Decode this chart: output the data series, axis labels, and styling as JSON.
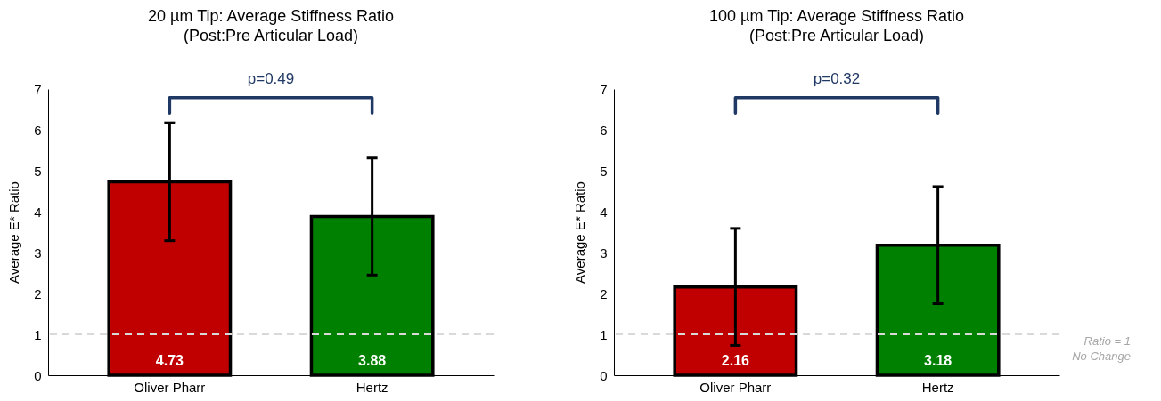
{
  "chart_data": [
    {
      "type": "bar",
      "title": "20 µm Tip: Average Stiffness Ratio",
      "subtitle": "(Post:Pre Articular Load)",
      "ylabel": "Average E* Ratio",
      "categories": [
        "Oliver Pharr",
        "Hertz"
      ],
      "values": [
        4.73,
        3.88
      ],
      "colors": [
        "#c00000",
        "#008000"
      ],
      "errors": [
        1.44,
        1.43
      ],
      "data_labels": true,
      "ylim": [
        0,
        7
      ],
      "yticks": [
        0,
        1,
        2,
        3,
        4,
        5,
        6,
        7
      ],
      "grid": false,
      "annotations": [
        "p=0.49"
      ],
      "ref_lines": [
        {
          "axis": "y",
          "value": 1,
          "color": "#d9d9d9",
          "line_style": "dashed"
        }
      ]
    },
    {
      "type": "bar",
      "title": "100 µm Tip: Average Stiffness Ratio",
      "subtitle": "(Post:Pre Articular Load)",
      "ylabel": "Average E* Ratio",
      "categories": [
        "Oliver Pharr",
        "Hertz"
      ],
      "values": [
        2.16,
        3.18
      ],
      "colors": [
        "#c00000",
        "#008000"
      ],
      "errors": [
        1.43,
        1.43
      ],
      "data_labels": true,
      "ylim": [
        0,
        7
      ],
      "yticks": [
        0,
        1,
        2,
        3,
        4,
        5,
        6,
        7
      ],
      "grid": false,
      "annotations": [
        "p=0.32"
      ],
      "ref_lines": [
        {
          "axis": "y",
          "value": 1,
          "label": "Ratio = 1\nNo Change",
          "color": "#d9d9d9",
          "line_style": "dashed"
        }
      ]
    }
  ]
}
